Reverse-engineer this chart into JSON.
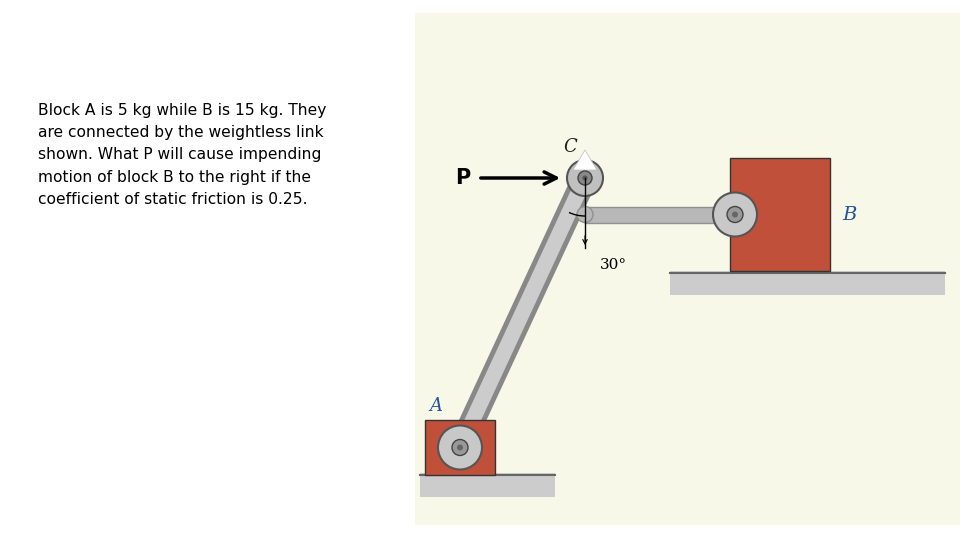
{
  "background_color": "#ffffff",
  "diagram_bg_color": "#f8f8e8",
  "text_block": "Block A is 5 kg while B is 15 kg. They\nare connected by the weightless link\nshown. What P will cause impending\nmotion of block B to the right if the\ncoefficient of static friction is 0.25.",
  "text_fontsize": 11.2,
  "block_color": "#c0503a",
  "label_C": "C",
  "label_A": "A",
  "label_B": "B",
  "label_P": "P",
  "label_angle": "30°",
  "link_outer_color": "#888888",
  "link_inner_color": "#cccccc",
  "rod_color": "#b8b8b8",
  "rod_dark": "#909090",
  "pin_outer": "#aaaaaa",
  "pin_inner": "#888888",
  "pin_center": "#666666",
  "ground_line": "#888888",
  "ground_fill": "#cccccc"
}
